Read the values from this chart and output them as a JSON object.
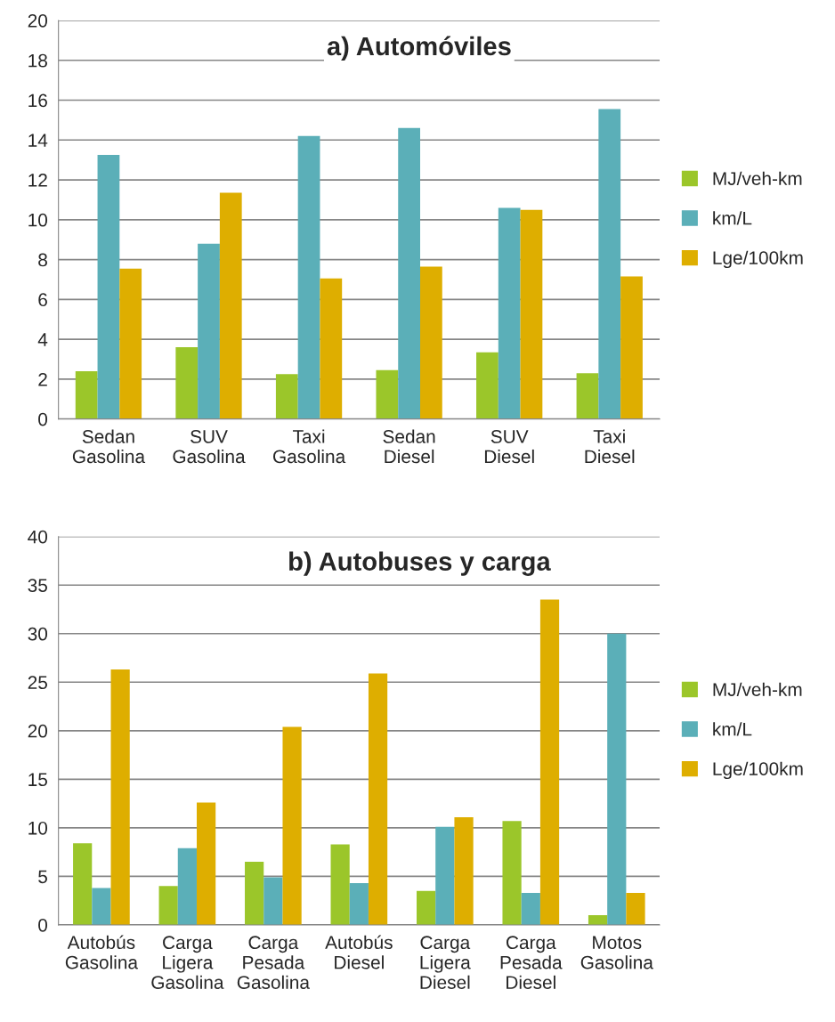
{
  "chart_data": [
    {
      "type": "bar",
      "title": "a) Automóviles",
      "categories": [
        "Sedan\nGasolina",
        "SUV\nGasolina",
        "Taxi\nGasolina",
        "Sedan\nDiesel",
        "SUV\nDiesel",
        "Taxi\nDiesel"
      ],
      "series": [
        {
          "name": "MJ/veh-km",
          "color": "#9bc62a",
          "values": [
            2.4,
            3.6,
            2.25,
            2.45,
            3.35,
            2.3
          ]
        },
        {
          "name": "km/L",
          "color": "#5bafb8",
          "values": [
            13.25,
            8.8,
            14.2,
            14.6,
            10.6,
            15.55
          ]
        },
        {
          "name": "Lge/100km",
          "color": "#deae00",
          "values": [
            7.55,
            11.35,
            7.05,
            7.65,
            10.5,
            7.15
          ]
        }
      ],
      "ylim": [
        0,
        20
      ],
      "yticks": [
        0,
        2,
        4,
        6,
        8,
        10,
        12,
        14,
        16,
        18,
        20
      ],
      "grid": "y",
      "legend": "right"
    },
    {
      "type": "bar",
      "title": "b) Autobuses y carga",
      "categories": [
        "Autobús\nGasolina",
        "Carga\nLigera\nGasolina",
        "Carga\nPesada\nGasolina",
        "Autobús\nDiesel",
        "Carga\nLigera\nDiesel",
        "Carga\nPesada\nDiesel",
        "Motos\nGasolina"
      ],
      "series": [
        {
          "name": "MJ/veh-km",
          "color": "#9bc62a",
          "values": [
            8.4,
            4.0,
            6.5,
            8.3,
            3.5,
            10.7,
            1.0
          ]
        },
        {
          "name": "km/L",
          "color": "#5bafb8",
          "values": [
            3.8,
            7.9,
            4.9,
            4.3,
            10.1,
            3.3,
            30.0
          ]
        },
        {
          "name": "Lge/100km",
          "color": "#deae00",
          "values": [
            26.3,
            12.6,
            20.4,
            25.9,
            11.1,
            33.5,
            3.3
          ]
        }
      ],
      "ylim": [
        0,
        40
      ],
      "yticks": [
        0,
        5,
        10,
        15,
        20,
        25,
        30,
        35,
        40
      ],
      "grid": "y",
      "legend": "right"
    }
  ]
}
